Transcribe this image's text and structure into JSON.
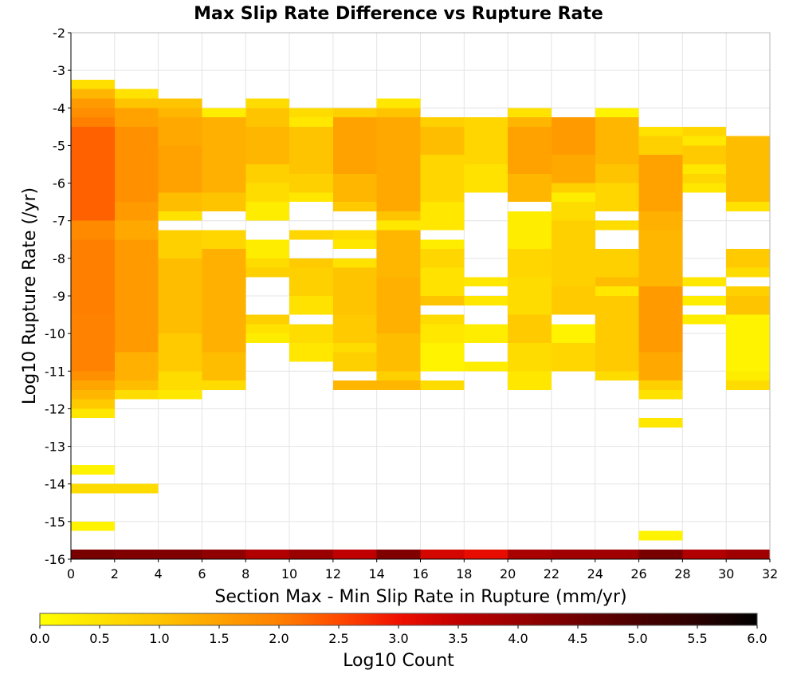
{
  "chart_data": {
    "type": "heatmap",
    "title": "Max Slip Rate Difference vs Rupture Rate",
    "xlabel": "Section Max - Min Slip Rate in Rupture (mm/yr)",
    "ylabel": "Log10 Rupture Rate (/yr)",
    "xlim": [
      0,
      32
    ],
    "ylim": [
      -16,
      -2
    ],
    "x_ticks": [
      0,
      2,
      4,
      6,
      8,
      10,
      12,
      14,
      16,
      18,
      20,
      22,
      24,
      26,
      28,
      30,
      32
    ],
    "y_ticks": [
      -2,
      -3,
      -4,
      -5,
      -6,
      -7,
      -8,
      -9,
      -10,
      -11,
      -12,
      -13,
      -14,
      -15,
      -16
    ],
    "bin_width_x": 2,
    "bin_height_y": 0.25,
    "grid": true,
    "colorbar": {
      "label": "Log10 Count",
      "min": 0.0,
      "max": 6.0,
      "ticks": [
        "0.0",
        "0.5",
        "1.0",
        "1.5",
        "2.0",
        "2.5",
        "3.0",
        "3.5",
        "4.0",
        "4.5",
        "5.0",
        "5.5",
        "6.0"
      ],
      "stops": [
        {
          "v": 0.0,
          "color": "#ffff00"
        },
        {
          "v": 1.0,
          "color": "#ffc400"
        },
        {
          "v": 2.0,
          "color": "#ff8000"
        },
        {
          "v": 2.5,
          "color": "#ff4a00"
        },
        {
          "v": 3.0,
          "color": "#f01000"
        },
        {
          "v": 3.5,
          "color": "#c00000"
        },
        {
          "v": 4.0,
          "color": "#990000"
        },
        {
          "v": 4.5,
          "color": "#700000"
        },
        {
          "v": 5.0,
          "color": "#4a0000"
        },
        {
          "v": 5.5,
          "color": "#2a0000"
        },
        {
          "v": 6.0,
          "color": "#000000"
        }
      ]
    },
    "columns": [
      {
        "x": 1,
        "cells": [
          [
            -3.5,
            -3.25,
            0.55
          ],
          [
            -3.75,
            -3.5,
            1.2
          ],
          [
            -4.0,
            -3.75,
            1.6
          ],
          [
            -4.25,
            -4.0,
            1.8
          ],
          [
            -4.5,
            -4.25,
            2.0
          ],
          [
            -7.0,
            -4.5,
            2.3
          ],
          [
            -7.5,
            -7.0,
            1.85
          ],
          [
            -9.5,
            -7.5,
            2.0
          ],
          [
            -11.0,
            -9.5,
            1.95
          ],
          [
            -11.25,
            -11.0,
            1.75
          ],
          [
            -11.5,
            -11.25,
            1.45
          ],
          [
            -11.75,
            -11.5,
            1.2
          ],
          [
            -12.0,
            -11.75,
            0.9
          ],
          [
            -12.25,
            -12.0,
            0.4
          ],
          [
            -13.75,
            -13.5,
            0.2
          ],
          [
            -14.25,
            -14.0,
            0.6
          ],
          [
            -15.25,
            -15.0,
            0.2
          ],
          [
            -16.0,
            -15.75,
            4.4
          ]
        ]
      },
      {
        "x": 3,
        "cells": [
          [
            -3.75,
            -3.5,
            0.5
          ],
          [
            -4.0,
            -3.75,
            1.0
          ],
          [
            -4.5,
            -4.0,
            1.5
          ],
          [
            -6.5,
            -4.5,
            1.75
          ],
          [
            -7.0,
            -6.5,
            1.6
          ],
          [
            -7.5,
            -7.0,
            1.4
          ],
          [
            -10.5,
            -7.5,
            1.6
          ],
          [
            -11.25,
            -10.5,
            1.3
          ],
          [
            -11.5,
            -11.25,
            1.1
          ],
          [
            -11.75,
            -11.5,
            0.6
          ],
          [
            -14.25,
            -14.0,
            0.6
          ],
          [
            -16.0,
            -15.75,
            4.3
          ]
        ]
      },
      {
        "x": 5,
        "cells": [
          [
            -4.0,
            -3.75,
            1.0
          ],
          [
            -4.25,
            -4.0,
            1.2
          ],
          [
            -5.0,
            -4.25,
            1.4
          ],
          [
            -6.25,
            -5.0,
            1.5
          ],
          [
            -6.75,
            -6.25,
            1.1
          ],
          [
            -7.0,
            -6.75,
            0.5
          ],
          [
            -8.0,
            -7.25,
            0.8
          ],
          [
            -10.0,
            -8.0,
            1.1
          ],
          [
            -11.0,
            -10.0,
            0.9
          ],
          [
            -11.5,
            -11.0,
            0.6
          ],
          [
            -11.75,
            -11.5,
            0.4
          ],
          [
            -16.0,
            -15.75,
            4.3
          ]
        ]
      },
      {
        "x": 7,
        "cells": [
          [
            -4.25,
            -4.0,
            0.3
          ],
          [
            -5.5,
            -4.25,
            1.3
          ],
          [
            -6.25,
            -5.5,
            1.3
          ],
          [
            -6.75,
            -6.25,
            1.0
          ],
          [
            -7.75,
            -7.25,
            0.7
          ],
          [
            -8.75,
            -7.75,
            1.3
          ],
          [
            -10.5,
            -8.75,
            1.3
          ],
          [
            -11.25,
            -10.5,
            1.1
          ],
          [
            -11.5,
            -11.25,
            0.6
          ],
          [
            -16.0,
            -15.75,
            4.1
          ]
        ]
      },
      {
        "x": 9,
        "cells": [
          [
            -4.0,
            -3.75,
            0.6
          ],
          [
            -4.5,
            -4.0,
            1.0
          ],
          [
            -5.5,
            -4.5,
            1.2
          ],
          [
            -6.0,
            -5.5,
            0.8
          ],
          [
            -6.5,
            -6.0,
            0.6
          ],
          [
            -7.0,
            -6.5,
            0.3
          ],
          [
            -8.0,
            -7.5,
            0.3
          ],
          [
            -8.25,
            -8.0,
            0.6
          ],
          [
            -8.5,
            -8.25,
            0.8
          ],
          [
            -9.75,
            -9.5,
            0.8
          ],
          [
            -10.0,
            -9.75,
            0.5
          ],
          [
            -10.25,
            -10.0,
            0.3
          ],
          [
            -16.0,
            -15.75,
            3.7
          ]
        ]
      },
      {
        "x": 11,
        "cells": [
          [
            -4.25,
            -4.0,
            0.6
          ],
          [
            -4.5,
            -4.25,
            0.4
          ],
          [
            -5.75,
            -4.5,
            1.0
          ],
          [
            -6.25,
            -5.75,
            0.8
          ],
          [
            -6.5,
            -6.25,
            0.4
          ],
          [
            -7.5,
            -7.25,
            0.7
          ],
          [
            -8.25,
            -8.0,
            0.9
          ],
          [
            -9.0,
            -8.25,
            0.8
          ],
          [
            -9.5,
            -9.0,
            0.5
          ],
          [
            -10.25,
            -9.75,
            0.6
          ],
          [
            -10.75,
            -10.25,
            0.4
          ],
          [
            -16.0,
            -15.75,
            4.0
          ]
        ]
      },
      {
        "x": 13,
        "cells": [
          [
            -4.25,
            -4.0,
            0.8
          ],
          [
            -5.75,
            -4.25,
            1.5
          ],
          [
            -6.5,
            -5.75,
            1.2
          ],
          [
            -6.75,
            -6.5,
            0.9
          ],
          [
            -7.5,
            -7.25,
            0.6
          ],
          [
            -7.75,
            -7.5,
            0.4
          ],
          [
            -8.25,
            -8.0,
            0.5
          ],
          [
            -9.5,
            -8.25,
            1.0
          ],
          [
            -10.25,
            -9.5,
            0.9
          ],
          [
            -10.5,
            -10.25,
            0.6
          ],
          [
            -11.0,
            -10.5,
            0.8
          ],
          [
            -11.5,
            -11.25,
            1.2
          ],
          [
            -16.0,
            -15.75,
            3.5
          ]
        ]
      },
      {
        "x": 15,
        "cells": [
          [
            -4.0,
            -3.75,
            0.4
          ],
          [
            -4.25,
            -4.0,
            1.0
          ],
          [
            -6.75,
            -4.25,
            1.4
          ],
          [
            -7.0,
            -6.75,
            1.0
          ],
          [
            -7.25,
            -7.0,
            0.4
          ],
          [
            -8.5,
            -7.25,
            1.2
          ],
          [
            -10.0,
            -8.5,
            1.3
          ],
          [
            -11.0,
            -10.0,
            1.1
          ],
          [
            -11.25,
            -11.0,
            0.8
          ],
          [
            -11.5,
            -11.25,
            1.2
          ],
          [
            -16.0,
            -15.75,
            4.3
          ]
        ]
      },
      {
        "x": 17,
        "cells": [
          [
            -4.5,
            -4.25,
            0.8
          ],
          [
            -5.25,
            -4.5,
            1.1
          ],
          [
            -6.5,
            -5.25,
            0.7
          ],
          [
            -7.25,
            -6.5,
            0.4
          ],
          [
            -7.75,
            -7.5,
            0.3
          ],
          [
            -8.25,
            -7.75,
            0.7
          ],
          [
            -9.0,
            -8.25,
            0.5
          ],
          [
            -9.25,
            -9.0,
            1.0
          ],
          [
            -9.75,
            -9.5,
            0.6
          ],
          [
            -10.25,
            -9.75,
            0.4
          ],
          [
            -11.0,
            -10.25,
            0.2
          ],
          [
            -11.5,
            -11.25,
            0.6
          ],
          [
            -16.0,
            -15.75,
            3.3
          ]
        ]
      },
      {
        "x": 19,
        "cells": [
          [
            -4.5,
            -4.25,
            0.7
          ],
          [
            -5.5,
            -4.5,
            0.7
          ],
          [
            -6.25,
            -5.5,
            0.5
          ],
          [
            -8.75,
            -8.5,
            0.4
          ],
          [
            -9.25,
            -9.0,
            0.4
          ],
          [
            -10.25,
            -9.75,
            0.3
          ],
          [
            -11.0,
            -10.75,
            0.3
          ],
          [
            -16.0,
            -15.75,
            3.1
          ]
        ]
      },
      {
        "x": 21,
        "cells": [
          [
            -4.25,
            -4.0,
            0.5
          ],
          [
            -4.5,
            -4.25,
            1.2
          ],
          [
            -5.75,
            -4.5,
            1.5
          ],
          [
            -6.5,
            -5.75,
            1.2
          ],
          [
            -7.75,
            -6.75,
            0.3
          ],
          [
            -8.5,
            -7.75,
            0.7
          ],
          [
            -9.5,
            -8.5,
            0.6
          ],
          [
            -10.25,
            -9.5,
            0.9
          ],
          [
            -11.0,
            -10.25,
            0.6
          ],
          [
            -11.5,
            -11.0,
            0.4
          ],
          [
            -16.0,
            -15.75,
            3.8
          ]
        ]
      },
      {
        "x": 23,
        "cells": [
          [
            -4.5,
            -4.25,
            1.6
          ],
          [
            -5.25,
            -4.5,
            1.6
          ],
          [
            -6.0,
            -5.25,
            1.4
          ],
          [
            -6.25,
            -6.0,
            0.8
          ],
          [
            -6.5,
            -6.25,
            0.3
          ],
          [
            -7.0,
            -6.5,
            0.6
          ],
          [
            -8.75,
            -7.0,
            0.8
          ],
          [
            -9.5,
            -8.75,
            0.9
          ],
          [
            -10.25,
            -9.75,
            0.2
          ],
          [
            -11.0,
            -10.25,
            0.7
          ],
          [
            -16.0,
            -15.75,
            3.9
          ]
        ]
      },
      {
        "x": 25,
        "cells": [
          [
            -4.25,
            -4.0,
            0.2
          ],
          [
            -4.5,
            -4.25,
            1.2
          ],
          [
            -5.5,
            -4.5,
            1.2
          ],
          [
            -6.0,
            -5.5,
            1.0
          ],
          [
            -6.75,
            -6.0,
            0.7
          ],
          [
            -7.25,
            -7.0,
            0.6
          ],
          [
            -8.5,
            -7.75,
            0.8
          ],
          [
            -8.75,
            -8.5,
            1.1
          ],
          [
            -9.0,
            -8.75,
            0.4
          ],
          [
            -11.0,
            -9.0,
            0.9
          ],
          [
            -11.25,
            -11.0,
            0.6
          ],
          [
            -16.0,
            -15.75,
            3.9
          ]
        ]
      },
      {
        "x": 27,
        "cells": [
          [
            -4.75,
            -4.5,
            0.5
          ],
          [
            -5.25,
            -4.75,
            0.8
          ],
          [
            -5.5,
            -5.25,
            1.5
          ],
          [
            -6.75,
            -5.5,
            1.5
          ],
          [
            -7.25,
            -6.75,
            1.3
          ],
          [
            -8.75,
            -7.25,
            1.2
          ],
          [
            -10.5,
            -8.75,
            1.6
          ],
          [
            -11.25,
            -10.5,
            1.4
          ],
          [
            -11.5,
            -11.25,
            0.8
          ],
          [
            -11.75,
            -11.5,
            0.5
          ],
          [
            -12.5,
            -12.25,
            0.4
          ],
          [
            -15.5,
            -15.25,
            0.2
          ],
          [
            -16.0,
            -15.75,
            4.4
          ]
        ]
      },
      {
        "x": 29,
        "cells": [
          [
            -4.75,
            -4.5,
            0.7
          ],
          [
            -5.0,
            -4.75,
            0.4
          ],
          [
            -5.5,
            -5.0,
            0.9
          ],
          [
            -5.75,
            -5.5,
            0.4
          ],
          [
            -6.0,
            -5.75,
            0.7
          ],
          [
            -6.25,
            -6.0,
            0.4
          ],
          [
            -8.75,
            -8.5,
            0.4
          ],
          [
            -9.25,
            -9.0,
            0.3
          ],
          [
            -9.75,
            -9.5,
            0.3
          ],
          [
            -16.0,
            -15.75,
            3.7
          ]
        ]
      },
      {
        "x": 31,
        "cells": [
          [
            -6.5,
            -4.75,
            1.1
          ],
          [
            -6.75,
            -6.5,
            0.5
          ],
          [
            -8.25,
            -7.75,
            0.9
          ],
          [
            -8.5,
            -8.25,
            0.6
          ],
          [
            -9.0,
            -8.75,
            0.8
          ],
          [
            -9.5,
            -9.0,
            1.0
          ],
          [
            -11.0,
            -9.5,
            0.2
          ],
          [
            -11.25,
            -11.0,
            0.3
          ],
          [
            -11.5,
            -11.25,
            0.6
          ],
          [
            -16.0,
            -15.75,
            3.9
          ]
        ]
      }
    ]
  }
}
